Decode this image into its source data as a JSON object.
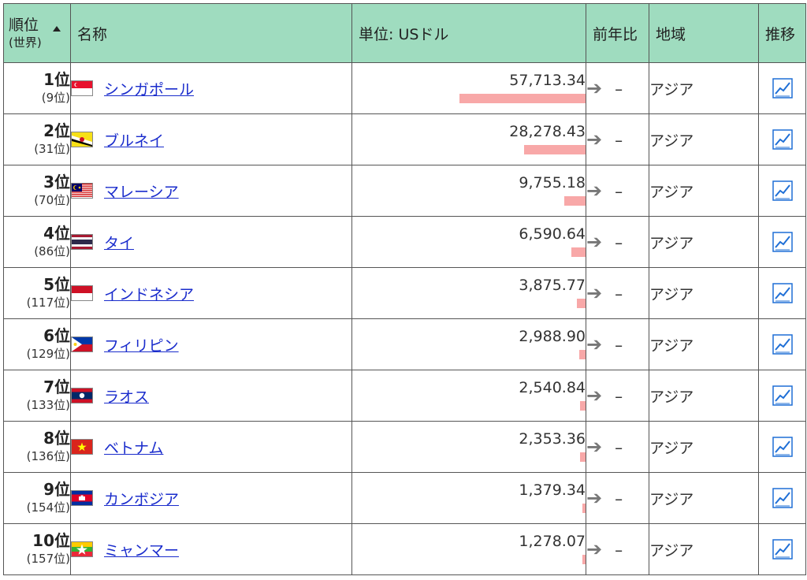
{
  "header": {
    "rank_line1": "順位",
    "rank_line2": "(世界)",
    "name": "名称",
    "unit": "単位: USドル",
    "yoy": "前年比",
    "region": "地域",
    "trend": "推移"
  },
  "rows": [
    {
      "rank": "1位",
      "world": "(9位)",
      "name": "シンガポール",
      "value": "57,713.34",
      "value_num": 57713.34,
      "change": "–",
      "region": "アジア",
      "flag": "flag-singapore"
    },
    {
      "rank": "2位",
      "world": "(31位)",
      "name": "ブルネイ",
      "value": "28,278.43",
      "value_num": 28278.43,
      "change": "–",
      "region": "アジア",
      "flag": "flag-brunei"
    },
    {
      "rank": "3位",
      "world": "(70位)",
      "name": "マレーシア",
      "value": "9,755.18",
      "value_num": 9755.18,
      "change": "–",
      "region": "アジア",
      "flag": "flag-malaysia"
    },
    {
      "rank": "4位",
      "world": "(86位)",
      "name": "タイ",
      "value": "6,590.64",
      "value_num": 6590.64,
      "change": "–",
      "region": "アジア",
      "flag": "flag-thailand"
    },
    {
      "rank": "5位",
      "world": "(117位)",
      "name": "インドネシア",
      "value": "3,875.77",
      "value_num": 3875.77,
      "change": "–",
      "region": "アジア",
      "flag": "flag-indonesia"
    },
    {
      "rank": "6位",
      "world": "(129位)",
      "name": "フィリピン",
      "value": "2,988.90",
      "value_num": 2988.9,
      "change": "–",
      "region": "アジア",
      "flag": "flag-philippines"
    },
    {
      "rank": "7位",
      "world": "(133位)",
      "name": "ラオス",
      "value": "2,540.84",
      "value_num": 2540.84,
      "change": "–",
      "region": "アジア",
      "flag": "flag-laos"
    },
    {
      "rank": "8位",
      "world": "(136位)",
      "name": "ベトナム",
      "value": "2,353.36",
      "value_num": 2353.36,
      "change": "–",
      "region": "アジア",
      "flag": "flag-vietnam"
    },
    {
      "rank": "9位",
      "world": "(154位)",
      "name": "カンボジア",
      "value": "1,379.34",
      "value_num": 1379.34,
      "change": "–",
      "region": "アジア",
      "flag": "flag-cambodia"
    },
    {
      "rank": "10位",
      "world": "(157位)",
      "name": "ミャンマー",
      "value": "1,278.07",
      "value_num": 1278.07,
      "change": "–",
      "region": "アジア",
      "flag": "flag-myanmar"
    }
  ],
  "colors": {
    "header_bg": "#9fdcbf",
    "bar": "#f8a8a8",
    "link": "#1a2ccc",
    "chart_icon": "#1f6fd6"
  }
}
